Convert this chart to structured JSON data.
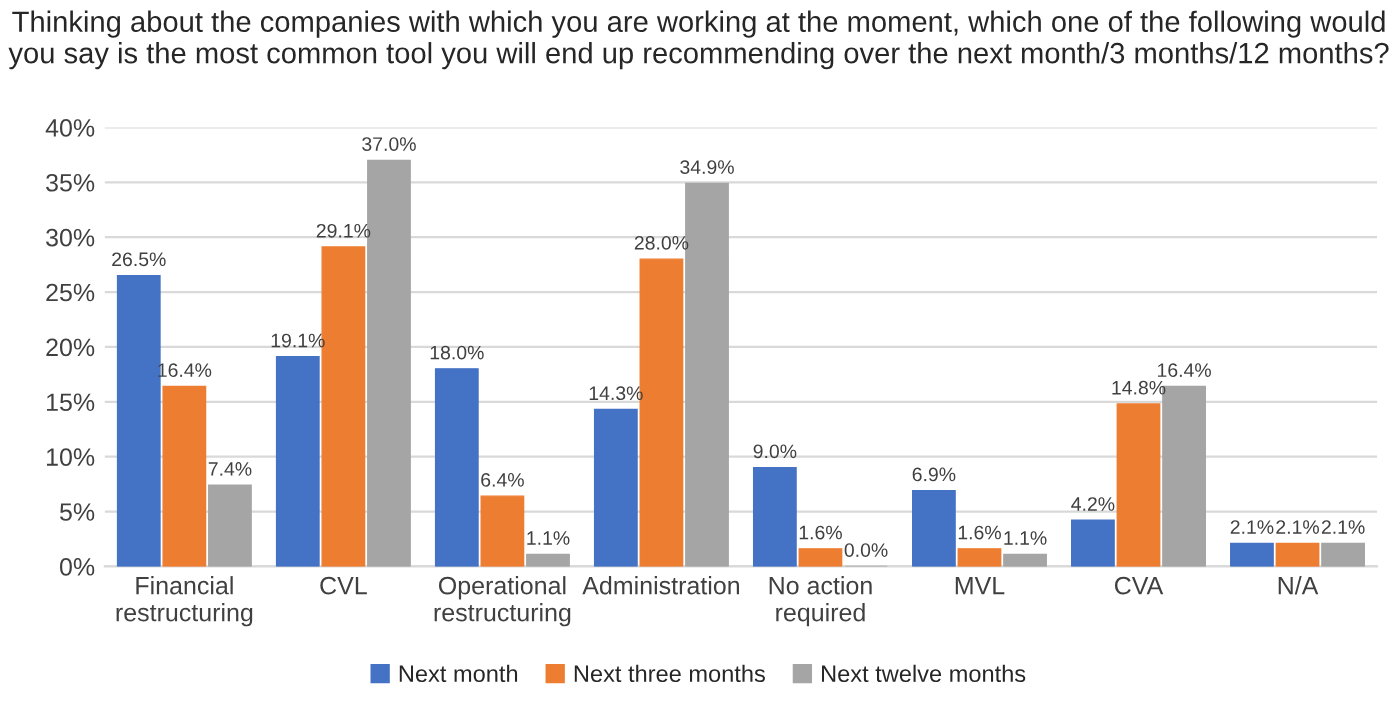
{
  "chart_data": {
    "type": "bar",
    "title": "Thinking about the companies with which you are working at the moment, which one of the following would you say is the most common tool you will end up recommending over the next month/3 months/12 months?",
    "categories": [
      "Financial\nrestructuring",
      "CVL",
      "Operational\nrestructuring",
      "Administration",
      "No action\nrequired",
      "MVL",
      "CVA",
      "N/A"
    ],
    "series": [
      {
        "name": "Next month",
        "color": "#4472c4",
        "values": [
          26.5,
          19.1,
          18.0,
          14.3,
          9.0,
          6.9,
          4.2,
          2.1
        ],
        "value_labels": [
          "26.5%",
          "19.1%",
          "18.0%",
          "14.3%",
          "9.0%",
          "6.9%",
          "4.2%",
          "2.1%"
        ]
      },
      {
        "name": "Next three months",
        "color": "#ed7d31",
        "values": [
          16.4,
          29.1,
          6.4,
          28.0,
          1.6,
          1.6,
          14.8,
          2.1
        ],
        "value_labels": [
          "16.4%",
          "29.1%",
          "6.4%",
          "28.0%",
          "1.6%",
          "1.6%",
          "14.8%",
          "2.1%"
        ]
      },
      {
        "name": "Next twelve months",
        "color": "#a5a5a5",
        "values": [
          7.4,
          37.0,
          1.1,
          34.9,
          0.0,
          1.1,
          16.4,
          2.1
        ],
        "value_labels": [
          "7.4%",
          "37.0%",
          "1.1%",
          "34.9%",
          "0.0%",
          "1.1%",
          "16.4%",
          "2.1%"
        ]
      }
    ],
    "ylim": [
      0,
      40
    ],
    "yticks": [
      {
        "value": 0,
        "label": "0%"
      },
      {
        "value": 5,
        "label": "5%"
      },
      {
        "value": 10,
        "label": "10%"
      },
      {
        "value": 15,
        "label": "15%"
      },
      {
        "value": 20,
        "label": "20%"
      },
      {
        "value": 25,
        "label": "25%"
      },
      {
        "value": 30,
        "label": "30%"
      },
      {
        "value": 35,
        "label": "35%"
      },
      {
        "value": 40,
        "label": "40%"
      }
    ],
    "grid": "y",
    "legend": "bottom"
  }
}
